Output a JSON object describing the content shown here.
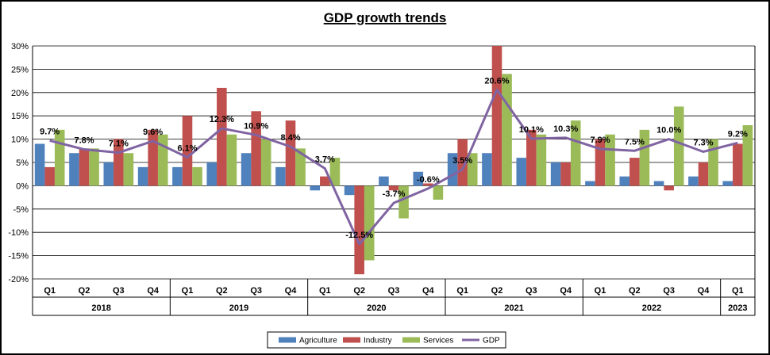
{
  "chart_data": {
    "type": "bar",
    "title": "GDP growth trends",
    "xlabel": "",
    "ylabel": "",
    "ylim": [
      -20,
      30
    ],
    "yticks": [
      "30%",
      "25%",
      "20%",
      "15%",
      "10%",
      "5%",
      "0%",
      "-5%",
      "-10%",
      "-15%",
      "-20%"
    ],
    "grid": true,
    "legend_position": "bottom",
    "categories": [
      "Q1",
      "Q2",
      "Q3",
      "Q4",
      "Q1",
      "Q2",
      "Q3",
      "Q4",
      "Q1",
      "Q2",
      "Q3",
      "Q4",
      "Q1",
      "Q2",
      "Q3",
      "Q4",
      "Q1",
      "Q2",
      "Q3",
      "Q4",
      "Q1"
    ],
    "years": [
      {
        "label": "2018",
        "count": 4
      },
      {
        "label": "2019",
        "count": 4
      },
      {
        "label": "2020",
        "count": 4
      },
      {
        "label": "2021",
        "count": 4
      },
      {
        "label": "2022",
        "count": 4
      },
      {
        "label": "2023",
        "count": 1
      }
    ],
    "series": [
      {
        "name": "Agriculture",
        "kind": "bar",
        "color": "#4f81bd",
        "values": [
          9,
          7,
          5,
          4,
          4,
          5,
          7,
          4,
          -1,
          -2,
          2,
          3,
          7,
          7,
          6,
          5,
          1,
          2,
          1,
          2,
          1
        ]
      },
      {
        "name": "Industry",
        "kind": "bar",
        "color": "#c0504d",
        "values": [
          4,
          8,
          10,
          12,
          15,
          21,
          16,
          14,
          2,
          -19,
          -1,
          0.5,
          10,
          30,
          12,
          5,
          10,
          6,
          -1,
          5,
          9
        ]
      },
      {
        "name": "Services",
        "kind": "bar",
        "color": "#9bbb59",
        "values": [
          12,
          8,
          7,
          11,
          4,
          11,
          10,
          8,
          6,
          -16,
          -7,
          -3,
          7,
          24,
          11,
          14,
          11,
          12,
          17,
          10,
          13
        ]
      },
      {
        "name": "GDP",
        "kind": "line",
        "color": "#8064a2",
        "values": [
          9.7,
          7.8,
          7.1,
          9.6,
          6.1,
          12.3,
          10.9,
          8.4,
          3.7,
          -12.5,
          -3.7,
          -0.6,
          3.5,
          20.6,
          10.1,
          10.3,
          7.9,
          7.5,
          10.0,
          7.3,
          9.2
        ],
        "labels": [
          "9.7%",
          "7.8%",
          "7.1%",
          "9.6%",
          "6.1%",
          "12.3%",
          "10.9%",
          "8.4%",
          "3.7%",
          "-12.5%",
          "-3.7%",
          "-0.6%",
          "3.5%",
          "20.6%",
          "10.1%",
          "10.3%",
          "7.9%",
          "7.5%",
          "10.0%",
          "7.3%",
          "9.2%"
        ]
      }
    ]
  }
}
